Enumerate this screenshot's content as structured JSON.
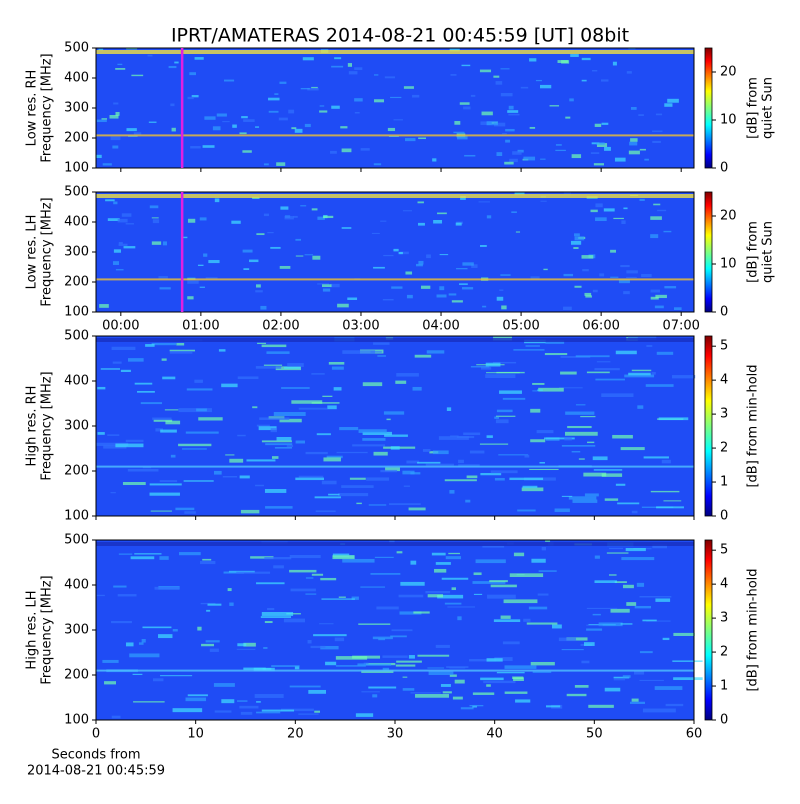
{
  "chart_data": [
    {
      "type": "heatmap",
      "title": "IPRT/AMATERAS 2014-08-21 00:45:59 [UT]   08bit",
      "ylabel": [
        "Low res. RH",
        "Frequency [MHz]"
      ],
      "ylim": [
        100,
        500
      ],
      "yticks": [
        100,
        200,
        300,
        400,
        500
      ],
      "xlim": [
        -0.31,
        7.16
      ],
      "marker_x": 0.766,
      "marker_color": "#e020e0",
      "clim": [
        0,
        25
      ],
      "cticks": [
        0,
        10,
        20
      ],
      "clabel": [
        "[dB] from",
        "quiet Sun"
      ]
    },
    {
      "type": "heatmap",
      "ylabel": [
        "Low res. LH",
        "Frequency [MHz]"
      ],
      "ylim": [
        100,
        500
      ],
      "yticks": [
        100,
        200,
        300,
        400,
        500
      ],
      "xlim": [
        -0.31,
        7.16
      ],
      "xticks": [
        {
          "value": 0,
          "label": "00:00"
        },
        {
          "value": 1,
          "label": "01:00"
        },
        {
          "value": 2,
          "label": "02:00"
        },
        {
          "value": 3,
          "label": "03:00"
        },
        {
          "value": 4,
          "label": "04:00"
        },
        {
          "value": 5,
          "label": "05:00"
        },
        {
          "value": 6,
          "label": "06:00"
        },
        {
          "value": 7,
          "label": "07:00"
        }
      ],
      "marker_x": 0.766,
      "marker_color": "#e020e0",
      "clim": [
        0,
        25
      ],
      "cticks": [
        0,
        10,
        20
      ],
      "clabel": [
        "[dB] from",
        "quiet Sun"
      ]
    },
    {
      "type": "heatmap",
      "ylabel": [
        "High res. RH",
        "Frequency [MHz]"
      ],
      "ylim": [
        100,
        500
      ],
      "yticks": [
        100,
        200,
        300,
        400,
        500
      ],
      "xlim": [
        0,
        60
      ],
      "clim": [
        0,
        5.3
      ],
      "cticks": [
        0,
        1,
        2,
        3,
        4,
        5
      ],
      "clabel": [
        "[dB] from min-hold"
      ]
    },
    {
      "type": "heatmap",
      "ylabel": [
        "High res. LH",
        "Frequency [MHz]"
      ],
      "ylim": [
        100,
        500
      ],
      "yticks": [
        100,
        200,
        300,
        400,
        500
      ],
      "xlim": [
        0,
        60
      ],
      "xticks": [
        0,
        10,
        20,
        30,
        40,
        50,
        60
      ],
      "xlabel": [
        "Seconds from",
        "2014-08-21 00:45:59"
      ],
      "clim": [
        0,
        5.3
      ],
      "cticks": [
        0,
        1,
        2,
        3,
        4,
        5
      ],
      "clabel": [
        "[dB] from min-hold"
      ]
    }
  ]
}
